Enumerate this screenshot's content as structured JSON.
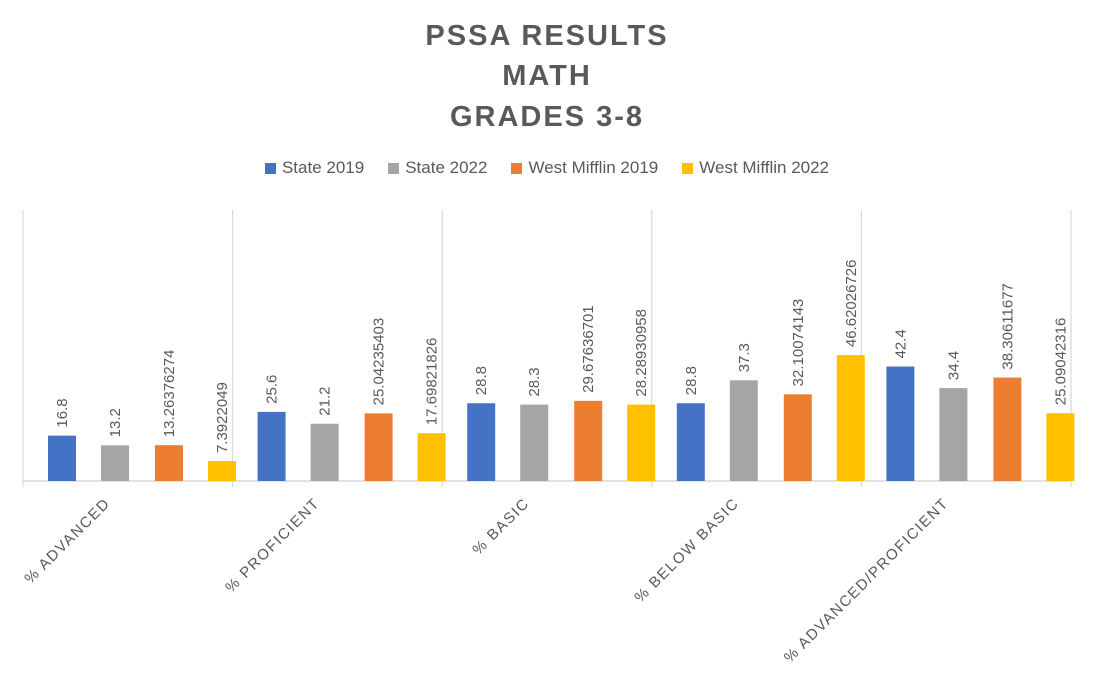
{
  "chart_data": {
    "type": "bar",
    "title_lines": [
      "PSSA RESULTS",
      "MATH",
      "GRADES 3-8"
    ],
    "categories": [
      "% ADVANCED",
      "% PROFICIENT",
      "% BASIC",
      "% BELOW BASIC",
      "% ADVANCED/PROFICIENT"
    ],
    "series": [
      {
        "name": "State 2019",
        "color": "#4472C4",
        "values": [
          16.8,
          25.6,
          28.8,
          28.8,
          42.4
        ],
        "labels": [
          "16.8",
          "25.6",
          "28.8",
          "28.8",
          "42.4"
        ]
      },
      {
        "name": "State 2022",
        "color": "#A5A5A5",
        "values": [
          13.2,
          21.2,
          28.3,
          37.3,
          34.4
        ],
        "labels": [
          "13.2",
          "21.2",
          "28.3",
          "37.3",
          "34.4"
        ]
      },
      {
        "name": "West Mifflin 2019",
        "color": "#ED7D31",
        "values": [
          13.26376274,
          25.04235403,
          29.67636701,
          32.10074143,
          38.30611677
        ],
        "labels": [
          "13.26376274",
          "25.04235403",
          "29.67636701",
          "32.10074143",
          "38.30611677"
        ]
      },
      {
        "name": "West Mifflin 2022",
        "color": "#FFC000",
        "values": [
          7.3922049,
          17.69821826,
          28.28930958,
          46.62026726,
          25.09042316
        ],
        "labels": [
          "7.3922049",
          "17.69821826",
          "28.28930958",
          "46.62026726",
          "25.09042316"
        ]
      }
    ],
    "xlabel": "",
    "ylabel": "",
    "ylim": [
      0,
      100
    ],
    "legend_position": "top"
  }
}
